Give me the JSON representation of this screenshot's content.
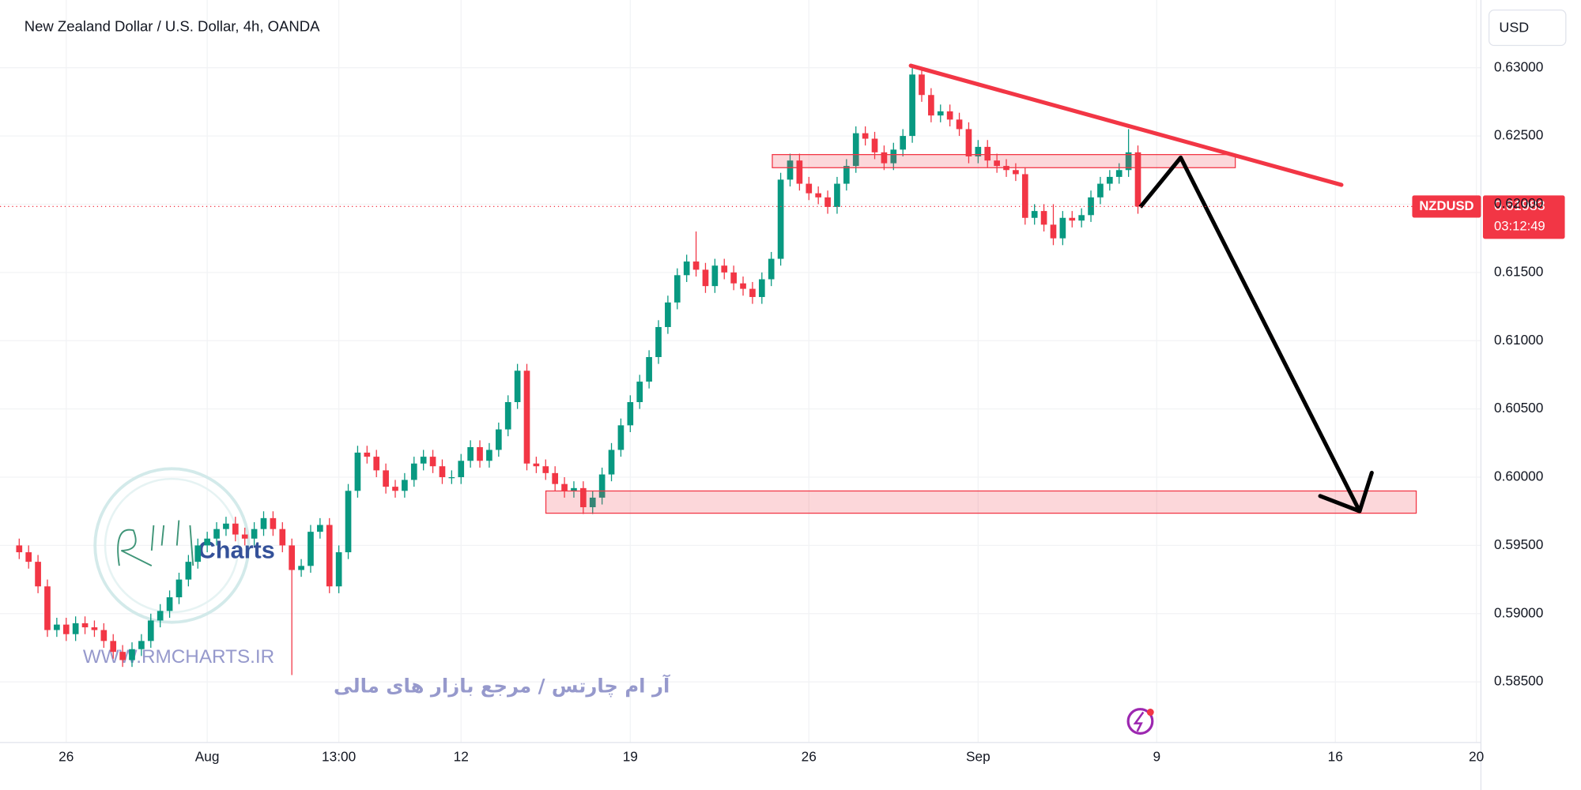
{
  "chart_data": {
    "type": "candlestick",
    "title": "New Zealand Dollar / U.S. Dollar, 4h, OANDA",
    "currency": "USD",
    "symbol": "NZDUSD",
    "last_price": 0.61983,
    "countdown": "03:12:49",
    "up_color": "#089981",
    "down_color": "#f23645",
    "ylim": [
      0.58056,
      0.63496
    ],
    "yticks": [
      {
        "value": 0.63,
        "label": "0.63000"
      },
      {
        "value": 0.625,
        "label": "0.62500"
      },
      {
        "value": 0.62,
        "label": "0.62000"
      },
      {
        "value": 0.615,
        "label": "0.61500"
      },
      {
        "value": 0.61,
        "label": "0.61000"
      },
      {
        "value": 0.605,
        "label": "0.60500"
      },
      {
        "value": 0.6,
        "label": "0.60000"
      },
      {
        "value": 0.595,
        "label": "0.59500"
      },
      {
        "value": 0.59,
        "label": "0.59000"
      },
      {
        "value": 0.585,
        "label": "0.58500"
      }
    ],
    "categories": [
      null,
      null,
      null,
      null,
      null,
      "26",
      null,
      null,
      null,
      null,
      null,
      null,
      null,
      null,
      null,
      null,
      null,
      null,
      null,
      null,
      "Aug",
      null,
      null,
      null,
      null,
      null,
      null,
      null,
      null,
      null,
      null,
      null,
      null,
      null,
      "13:00",
      null,
      null,
      null,
      null,
      null,
      null,
      null,
      null,
      null,
      null,
      null,
      null,
      "12",
      null,
      null,
      null,
      null,
      null,
      null,
      null,
      null,
      null,
      null,
      null,
      null,
      null,
      null,
      null,
      null,
      null,
      "19",
      null,
      null,
      null,
      null,
      null,
      null,
      null,
      null,
      null,
      null,
      null,
      null,
      null,
      null,
      null,
      null,
      null,
      null,
      "26",
      null,
      null,
      null,
      null,
      null,
      null,
      null,
      null,
      null,
      null,
      null,
      null,
      null,
      null,
      null,
      null,
      null,
      "Sep",
      null,
      null,
      null,
      null,
      null,
      null,
      null,
      null,
      null,
      null,
      null,
      null,
      null,
      null,
      null,
      null,
      null,
      null,
      "9",
      null,
      null,
      null,
      null,
      null,
      null,
      null,
      null,
      null,
      null,
      null,
      null,
      null,
      null,
      null,
      null,
      null,
      null,
      "16",
      null,
      null,
      null,
      null,
      null,
      null,
      null,
      null,
      null,
      null,
      null,
      null,
      null,
      null,
      "20"
    ],
    "open": [
      0.595,
      0.5945,
      0.5938,
      0.592,
      0.5888,
      0.5892,
      0.5885,
      0.5893,
      0.589,
      0.5888,
      0.588,
      0.5872,
      0.5866,
      0.5874,
      0.588,
      0.5895,
      0.5902,
      0.5912,
      0.5925,
      0.5938,
      0.595,
      0.5955,
      0.5962,
      0.5966,
      0.5958,
      0.5955,
      0.5962,
      0.597,
      0.5962,
      0.595,
      0.5932,
      0.5935,
      0.596,
      0.5965,
      0.592,
      0.5945,
      0.599,
      0.6018,
      0.6015,
      0.6005,
      0.5993,
      0.599,
      0.5998,
      0.601,
      0.6015,
      0.6008,
      0.6,
      0.6,
      0.6012,
      0.6022,
      0.6012,
      0.602,
      0.6035,
      0.6055,
      0.6078,
      0.601,
      0.6008,
      0.6003,
      0.5995,
      0.599,
      0.5992,
      0.5978,
      0.5985,
      0.6002,
      0.602,
      0.6038,
      0.6055,
      0.607,
      0.6088,
      0.611,
      0.6128,
      0.6148,
      0.6158,
      0.6152,
      0.614,
      0.6155,
      0.615,
      0.6142,
      0.6138,
      0.6132,
      0.6145,
      0.616,
      0.6218,
      0.6232,
      0.6215,
      0.6208,
      0.6205,
      0.6198,
      0.6215,
      0.6228,
      0.6252,
      0.6248,
      0.6238,
      0.623,
      0.624,
      0.625,
      0.6295,
      0.628,
      0.6265,
      0.6268,
      0.6262,
      0.6255,
      0.6235,
      0.6242,
      0.6232,
      0.6228,
      0.6225,
      0.6222,
      0.619,
      0.6195,
      0.6185,
      0.6175,
      0.619,
      0.6188,
      0.6192,
      0.6205,
      0.6215,
      0.622,
      0.6225,
      0.6238,
      null,
      null,
      null,
      null,
      null,
      null,
      null,
      null,
      null,
      null,
      null,
      null,
      null,
      null,
      null,
      null,
      null,
      null,
      null,
      null,
      null,
      null,
      null,
      null,
      null,
      null,
      null,
      null,
      null,
      null,
      null,
      null,
      null,
      null,
      null,
      null
    ],
    "high": [
      0.5955,
      0.595,
      0.5943,
      0.5925,
      0.5897,
      0.5897,
      0.5898,
      0.5898,
      0.5895,
      0.5893,
      0.5885,
      0.5877,
      0.5879,
      0.5885,
      0.59,
      0.5907,
      0.5917,
      0.593,
      0.5943,
      0.5955,
      0.596,
      0.5967,
      0.5971,
      0.5971,
      0.5963,
      0.5967,
      0.5975,
      0.5975,
      0.5967,
      0.5955,
      0.594,
      0.5965,
      0.597,
      0.597,
      0.595,
      0.5995,
      0.6023,
      0.6023,
      0.602,
      0.601,
      0.5998,
      0.6003,
      0.6015,
      0.602,
      0.602,
      0.6013,
      0.6005,
      0.6017,
      0.6027,
      0.6027,
      0.6025,
      0.604,
      0.606,
      0.6083,
      0.6083,
      0.6015,
      0.6013,
      0.6008,
      0.6,
      0.5997,
      0.5997,
      0.599,
      0.6007,
      0.6025,
      0.6043,
      0.606,
      0.6075,
      0.6093,
      0.6115,
      0.6133,
      0.6153,
      0.6163,
      0.618,
      0.6157,
      0.616,
      0.616,
      0.6155,
      0.6147,
      0.6143,
      0.615,
      0.6165,
      0.6223,
      0.6237,
      0.6237,
      0.622,
      0.6213,
      0.621,
      0.622,
      0.6233,
      0.6257,
      0.6257,
      0.6253,
      0.6243,
      0.6245,
      0.6255,
      0.63,
      0.63,
      0.6285,
      0.6273,
      0.6273,
      0.6267,
      0.626,
      0.6247,
      0.6247,
      0.6237,
      0.6233,
      0.623,
      0.6227,
      0.62,
      0.62,
      0.62,
      0.6195,
      0.6195,
      0.6197,
      0.621,
      0.622,
      0.6225,
      0.623,
      0.6255,
      0.6243,
      null,
      null,
      null,
      null,
      null,
      null,
      null,
      null,
      null,
      null,
      null,
      null,
      null,
      null,
      null,
      null,
      null,
      null,
      null,
      null,
      null,
      null,
      null,
      null,
      null,
      null,
      null,
      null,
      null,
      null,
      null,
      null,
      null,
      null,
      null,
      null
    ],
    "low": [
      0.594,
      0.5933,
      0.5915,
      0.5883,
      0.5883,
      0.588,
      0.588,
      0.5885,
      0.5883,
      0.5875,
      0.5867,
      0.5861,
      0.5861,
      0.5869,
      0.5875,
      0.589,
      0.5897,
      0.5907,
      0.592,
      0.5933,
      0.5945,
      0.595,
      0.5957,
      0.5953,
      0.595,
      0.595,
      0.5957,
      0.5957,
      0.5945,
      0.5855,
      0.5927,
      0.593,
      0.5955,
      0.5915,
      0.5915,
      0.594,
      0.5985,
      0.601,
      0.6,
      0.5988,
      0.5985,
      0.5985,
      0.5993,
      0.6005,
      0.6003,
      0.5995,
      0.5995,
      0.5995,
      0.6007,
      0.6007,
      0.6007,
      0.6015,
      0.603,
      0.605,
      0.6005,
      0.6003,
      0.5998,
      0.599,
      0.5985,
      0.5985,
      0.5973,
      0.5973,
      0.598,
      0.5997,
      0.6015,
      0.6033,
      0.605,
      0.6065,
      0.6083,
      0.6105,
      0.6123,
      0.6143,
      0.6147,
      0.6135,
      0.6135,
      0.6145,
      0.6137,
      0.6133,
      0.6127,
      0.6127,
      0.614,
      0.6155,
      0.6213,
      0.621,
      0.6203,
      0.62,
      0.6193,
      0.6193,
      0.621,
      0.6223,
      0.6243,
      0.6233,
      0.6225,
      0.6225,
      0.6235,
      0.6245,
      0.6275,
      0.626,
      0.626,
      0.6257,
      0.625,
      0.623,
      0.623,
      0.6227,
      0.6223,
      0.622,
      0.6217,
      0.6185,
      0.6185,
      0.618,
      0.617,
      0.617,
      0.6183,
      0.6183,
      0.6187,
      0.62,
      0.621,
      0.6215,
      0.622,
      0.6193,
      null,
      null,
      null,
      null,
      null,
      null,
      null,
      null,
      null,
      null,
      null,
      null,
      null,
      null,
      null,
      null,
      null,
      null,
      null,
      null,
      null,
      null,
      null,
      null,
      null,
      null,
      null,
      null,
      null,
      null,
      null,
      null,
      null,
      null,
      null,
      null
    ],
    "close": [
      0.5945,
      0.5938,
      0.592,
      0.5888,
      0.5892,
      0.5885,
      0.5893,
      0.589,
      0.5888,
      0.588,
      0.5872,
      0.5866,
      0.5874,
      0.588,
      0.5895,
      0.5902,
      0.5912,
      0.5925,
      0.5938,
      0.595,
      0.5955,
      0.5962,
      0.5966,
      0.5958,
      0.5955,
      0.5962,
      0.597,
      0.5962,
      0.595,
      0.5932,
      0.5935,
      0.596,
      0.5965,
      0.592,
      0.5945,
      0.599,
      0.6018,
      0.6015,
      0.6005,
      0.5993,
      0.599,
      0.5998,
      0.601,
      0.6015,
      0.6008,
      0.6,
      0.6,
      0.6012,
      0.6022,
      0.6012,
      0.602,
      0.6035,
      0.6055,
      0.6078,
      0.601,
      0.6008,
      0.6003,
      0.5995,
      0.599,
      0.5992,
      0.5978,
      0.5985,
      0.6002,
      0.602,
      0.6038,
      0.6055,
      0.607,
      0.6088,
      0.611,
      0.6128,
      0.6148,
      0.6158,
      0.6152,
      0.614,
      0.6155,
      0.615,
      0.6142,
      0.6138,
      0.6132,
      0.6145,
      0.616,
      0.6218,
      0.6232,
      0.6215,
      0.6208,
      0.6205,
      0.6198,
      0.6215,
      0.6228,
      0.6252,
      0.6248,
      0.6238,
      0.623,
      0.624,
      0.625,
      0.6295,
      0.628,
      0.6265,
      0.6268,
      0.6262,
      0.6255,
      0.6235,
      0.6242,
      0.6232,
      0.6228,
      0.6225,
      0.6222,
      0.619,
      0.6195,
      0.6185,
      0.6175,
      0.619,
      0.6188,
      0.6192,
      0.6205,
      0.6215,
      0.622,
      0.6225,
      0.6238,
      0.61983,
      null,
      null,
      null,
      null,
      null,
      null,
      null,
      null,
      null,
      null,
      null,
      null,
      null,
      null,
      null,
      null,
      null,
      null,
      null,
      null,
      null,
      null,
      null,
      null,
      null,
      null,
      null,
      null,
      null,
      null,
      null,
      null,
      null,
      null,
      null,
      null
    ]
  },
  "watermark": {
    "logo": "Charts",
    "url": "WWW.RMCHARTS.IR",
    "tagline": "آر ام چارتس / مرجع بازار های مالی"
  }
}
